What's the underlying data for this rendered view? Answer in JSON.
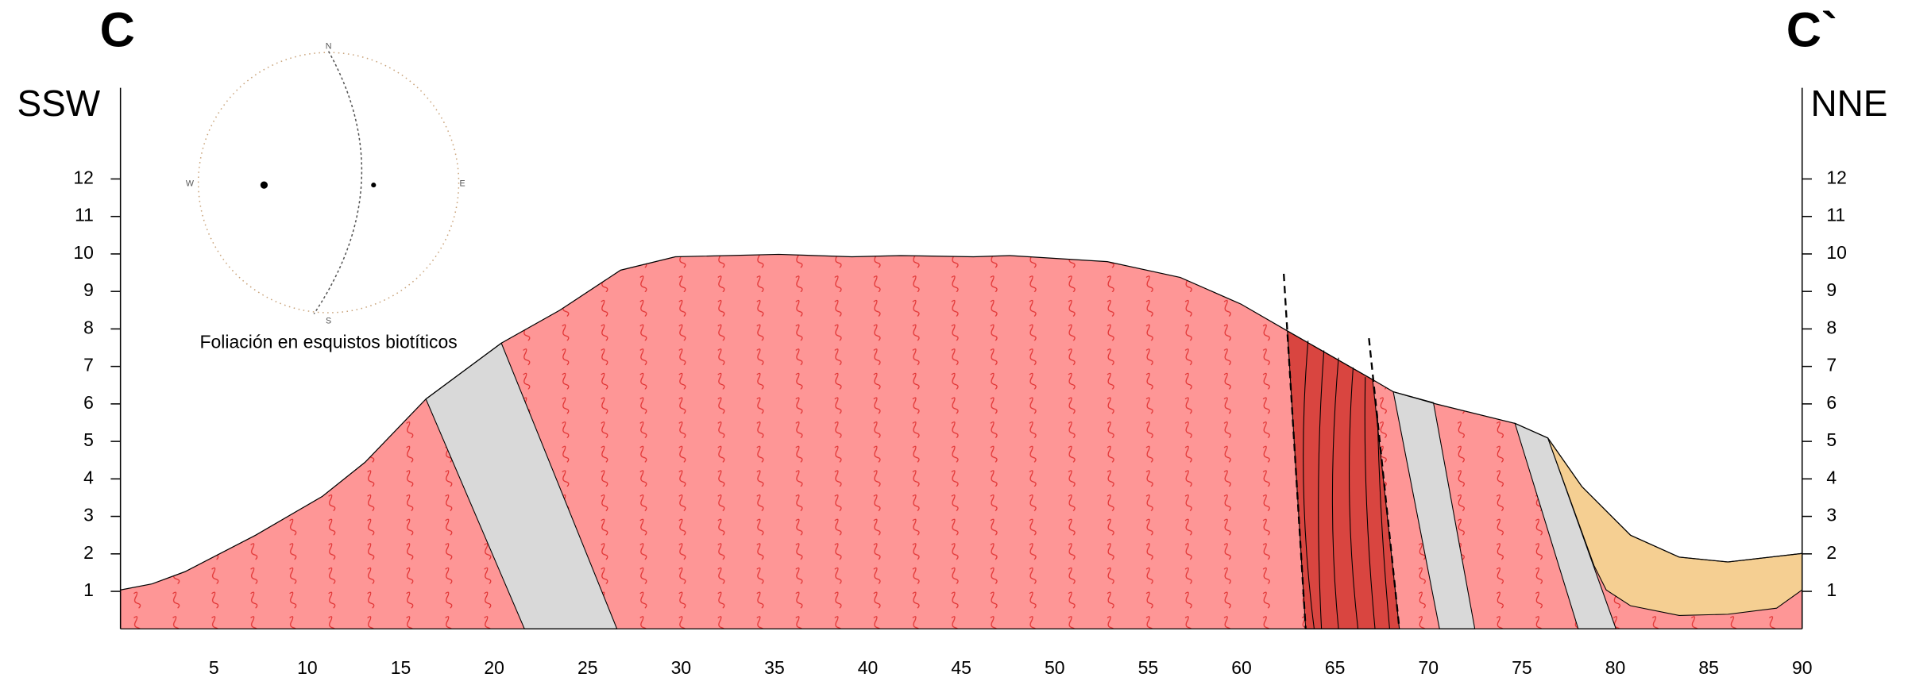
{
  "header": {
    "left_label": "C",
    "right_label": "C`",
    "left_direction": "SSW",
    "right_direction": "NNE"
  },
  "stereonet": {
    "caption": "Foliación en esquistos biotíticos",
    "north": "N",
    "south": "S",
    "west": "W",
    "east": "E"
  },
  "axes": {
    "xlim": [
      0,
      90
    ],
    "ylim": [
      0,
      12
    ],
    "xticks": [
      5,
      10,
      15,
      20,
      25,
      30,
      35,
      40,
      45,
      50,
      55,
      60,
      65,
      70,
      75,
      80,
      85,
      90
    ],
    "yticks": [
      1,
      2,
      3,
      4,
      5,
      6,
      7,
      8,
      9,
      10,
      11,
      12
    ]
  }
}
